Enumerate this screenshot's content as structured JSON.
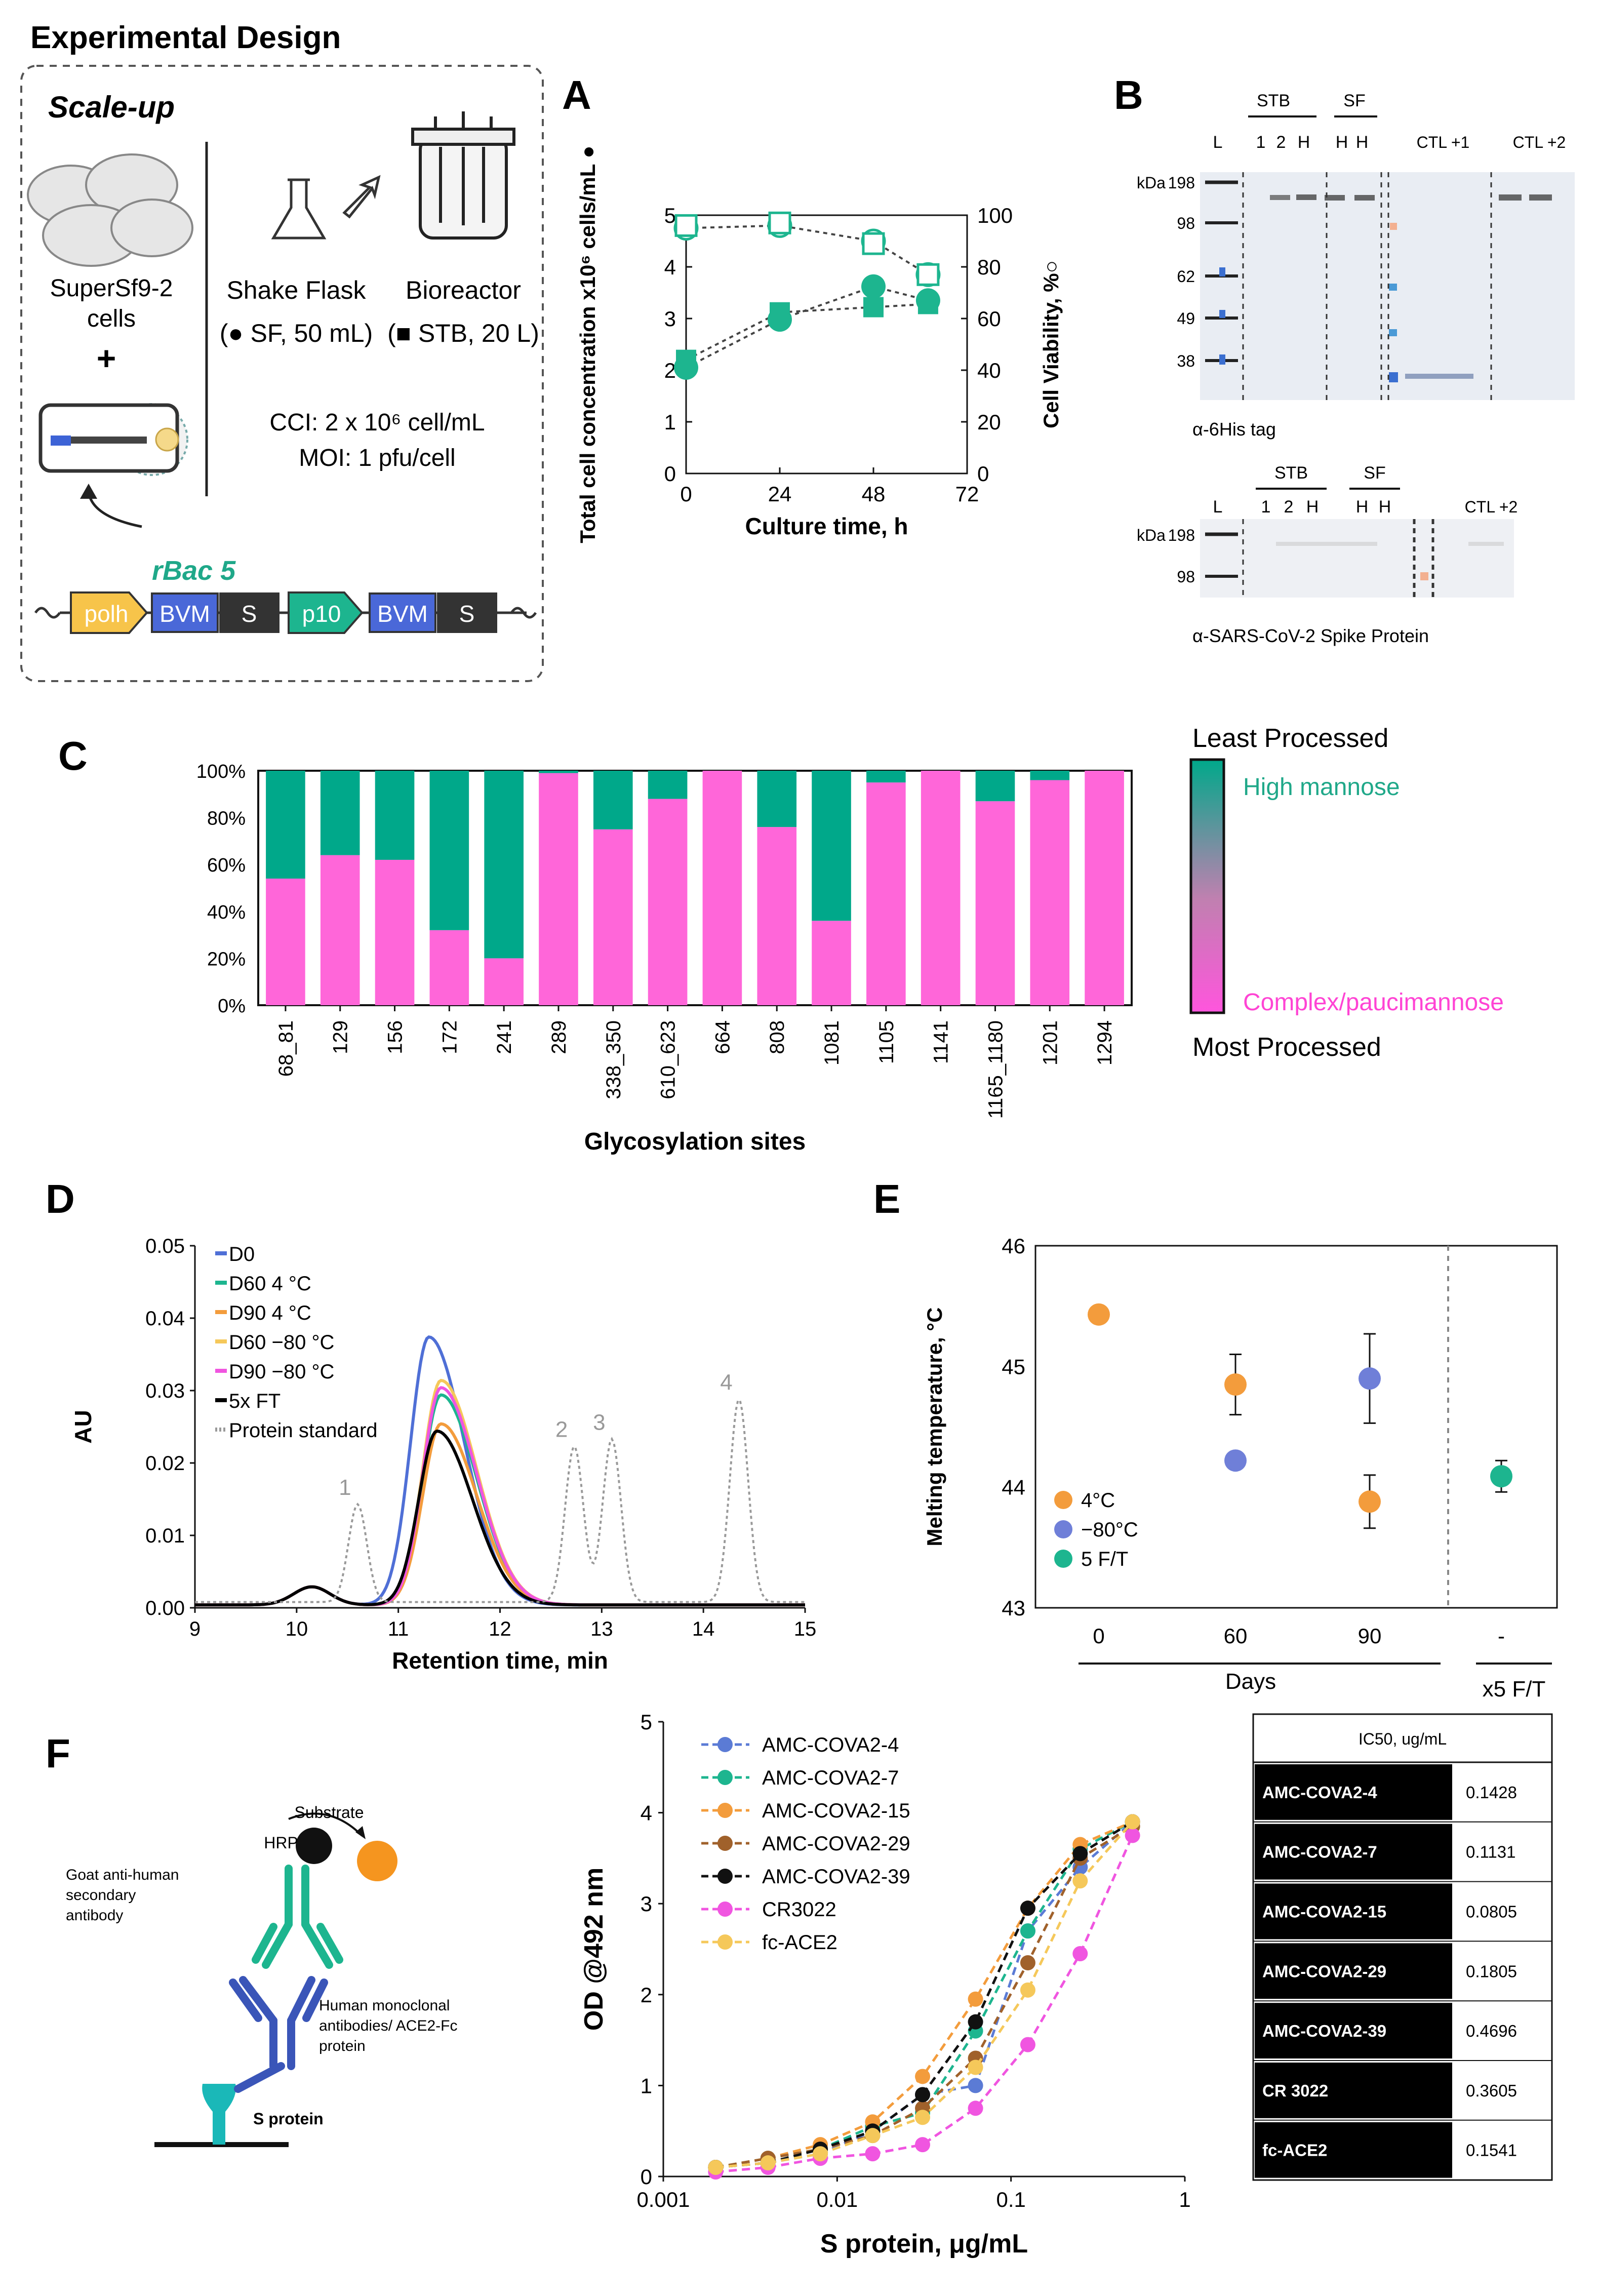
{
  "panel_labels": {
    "A": "A",
    "B": "B",
    "C": "C",
    "D": "D",
    "E": "E",
    "F": "F"
  },
  "design": {
    "title": "Experimental Design",
    "scaleup": "Scale-up",
    "cells_line1": "SuperSf9-2",
    "cells_line2": "cells",
    "plus": "+",
    "flask_name": "Shake Flask",
    "flask_desc": "(● SF, 50 mL)",
    "bioreactor_name": "Bioreactor",
    "bioreactor_desc": "(■ STB, 20 L)",
    "cci": "CCI: 2 x 10⁶ cell/mL",
    "moi": "MOI: 1 pfu/cell",
    "rbac": "rBac 5",
    "construct": {
      "polh": "polh",
      "bvm": "BVM",
      "s": "S",
      "p10": "p10"
    }
  },
  "panelB": {
    "gel1": {
      "group_stb": "STB",
      "group_sf": "SF",
      "lanes": [
        "L",
        "1",
        "2",
        "H",
        "H",
        "H"
      ],
      "ctl1": "CTL +1",
      "ctl2": "CTL +2",
      "kda": "kDa",
      "markers": [
        "198",
        "98",
        "62",
        "49",
        "38"
      ],
      "caption": "α-6His tag"
    },
    "gel2": {
      "group_stb": "STB",
      "group_sf": "SF",
      "lanes": [
        "L",
        "1",
        "2",
        "H",
        "H",
        "H"
      ],
      "ctl2": "CTL +2",
      "kda": "kDa",
      "markers": [
        "198",
        "98"
      ],
      "caption": "α-SARS-CoV-2 Spike Protein"
    }
  },
  "panelC_labels": {
    "least": "Least Processed",
    "most": "Most Processed",
    "high_mannose": "High mannose",
    "complex": "Complex/paucimannose"
  },
  "panelE_labels": {
    "group1": "Days",
    "group2": "x5 F/T"
  },
  "panelF": {
    "substrate": "Substrate",
    "hrp": "HRP",
    "secondary": [
      "Goat anti-human",
      "secondary",
      "antibody"
    ],
    "primary": [
      "Human monoclonal",
      "antibodies/ ACE2-Fc",
      "protein"
    ],
    "sprotein": "S protein",
    "table_header": "IC50, ug/mL",
    "table": [
      {
        "name": "AMC-COVA2-4",
        "ic50": "0.1428"
      },
      {
        "name": "AMC-COVA2-7",
        "ic50": "0.1131"
      },
      {
        "name": "AMC-COVA2-15",
        "ic50": "0.0805"
      },
      {
        "name": "AMC-COVA2-29",
        "ic50": "0.1805"
      },
      {
        "name": "AMC-COVA2-39",
        "ic50": "0.4696"
      },
      {
        "name": "CR 3022",
        "ic50": "0.3605"
      },
      {
        "name": "fc-ACE2",
        "ic50": "0.1541"
      }
    ]
  },
  "chart_data": [
    {
      "id": "A",
      "type": "scatter",
      "xlabel": "Culture time, h",
      "ylabel": "Total cell concentration x10⁶ cells/mL ●",
      "y2label": "Cell Viability, %○",
      "xticks": [
        "0",
        "24",
        "48",
        "72"
      ],
      "yticks": [
        "0",
        "1",
        "2",
        "3",
        "4",
        "5"
      ],
      "y2ticks": [
        "0",
        "20",
        "40",
        "60",
        "80",
        "100"
      ],
      "xlim": [
        0,
        72
      ],
      "ylim": [
        0,
        5
      ],
      "y2lim": [
        0,
        100
      ],
      "series": [
        {
          "name": "SF cell concentration",
          "x": [
            0,
            24,
            48,
            62
          ],
          "y": [
            2.05,
            2.98,
            3.62,
            3.35
          ]
        },
        {
          "name": "STB cell concentration",
          "x": [
            0,
            24,
            48,
            62
          ],
          "y": [
            2.2,
            3.12,
            3.22,
            3.28
          ]
        },
        {
          "name": "SF viability",
          "x": [
            0,
            24,
            48,
            62
          ],
          "y": [
            95,
            96,
            90,
            77
          ]
        },
        {
          "name": "STB viability",
          "x": [
            0,
            24,
            48,
            62
          ],
          "y": [
            96,
            97,
            89,
            77
          ]
        }
      ]
    },
    {
      "id": "C",
      "type": "bar",
      "xlabel": "Glycosylation sites",
      "colorbar_label_top": "Least Processed",
      "colorbar_label_bottom": "Most Processed",
      "yticks": [
        "0%",
        "20%",
        "40%",
        "60%",
        "80%",
        "100%"
      ],
      "ylim": [
        0,
        100
      ],
      "categories": [
        "68_81",
        "129",
        "156",
        "172",
        "241",
        "289",
        "338_350",
        "610_623",
        "664",
        "808",
        "1081",
        "1105",
        "1141",
        "1165_1180",
        "1201",
        "1294"
      ],
      "series": [
        {
          "name": "Complex/paucimannose",
          "color": "#ff66d9",
          "values": [
            54,
            64,
            62,
            32,
            20,
            99,
            75,
            88,
            100,
            76,
            36,
            95,
            100,
            87,
            96,
            100
          ]
        },
        {
          "name": "High mannose",
          "color": "#00a88a",
          "values": [
            46,
            36,
            38,
            68,
            80,
            1,
            25,
            12,
            0,
            24,
            64,
            5,
            0,
            13,
            4,
            0
          ]
        }
      ]
    },
    {
      "id": "D",
      "type": "line",
      "xlabel": "Retention time, min",
      "ylabel": "AU",
      "xticks": [
        "9",
        "10",
        "11",
        "12",
        "13",
        "14",
        "15"
      ],
      "yticks": [
        "0.00",
        "0.01",
        "0.02",
        "0.03",
        "0.04",
        "0.05"
      ],
      "xlim": [
        9,
        15
      ],
      "ylim": [
        0,
        0.05
      ],
      "peak_labels": [
        "1",
        "2",
        "3",
        "4"
      ],
      "series": [
        {
          "name": "D0",
          "color": "#4f6fd6",
          "peak_rt": 11.3,
          "peak_au": 0.037
        },
        {
          "name": "D60 4 °C",
          "color": "#1db58f",
          "peak_rt": 11.42,
          "peak_au": 0.029
        },
        {
          "name": "D90 4 °C",
          "color": "#f39c3c",
          "peak_rt": 11.42,
          "peak_au": 0.025
        },
        {
          "name": "D60 −80 °C",
          "color": "#f5c85a",
          "peak_rt": 11.42,
          "peak_au": 0.031
        },
        {
          "name": "D90 −80 °C",
          "color": "#f055e0",
          "peak_rt": 11.42,
          "peak_au": 0.03
        },
        {
          "name": "5x FT",
          "color": "#000000",
          "peak_rt": 11.38,
          "peak_au": 0.024
        },
        {
          "name": "Protein standard",
          "color": "#999999",
          "peaks_rt": [
            10.6,
            12.73,
            13.1,
            14.35
          ],
          "peaks_au": [
            0.0135,
            0.0215,
            0.0225,
            0.028
          ]
        }
      ]
    },
    {
      "id": "E",
      "type": "scatter",
      "ylabel": "Melting temperature, °C",
      "xticks": [
        "0",
        "60",
        "90",
        "-"
      ],
      "yticks": [
        "43",
        "44",
        "45",
        "46"
      ],
      "ylim": [
        43,
        46
      ],
      "series": [
        {
          "name": "4°C",
          "color": "#f39c3c",
          "x": [
            "0",
            "60",
            "90"
          ],
          "y": [
            45.43,
            44.85,
            43.88
          ],
          "err": [
            0,
            0.25,
            0.22
          ]
        },
        {
          "name": "−80°C",
          "color": "#6f7fd8",
          "x": [
            "60",
            "90"
          ],
          "y": [
            44.22,
            44.9
          ],
          "err": [
            0,
            0.37
          ]
        },
        {
          "name": "5 F/T",
          "color": "#1db58f",
          "x": [
            "-"
          ],
          "y": [
            44.09
          ],
          "err": [
            0.13
          ]
        }
      ]
    },
    {
      "id": "F",
      "type": "line",
      "xlabel": "S protein, μg/mL",
      "ylabel": "OD @492 nm",
      "xticks": [
        "0.001",
        "0.01",
        "0.1",
        "1"
      ],
      "yticks": [
        "0",
        "1",
        "2",
        "3",
        "4",
        "5"
      ],
      "xscale": "log",
      "xlim": [
        0.001,
        1
      ],
      "ylim": [
        0,
        5
      ],
      "x": [
        0.002,
        0.004,
        0.008,
        0.016,
        0.031,
        0.0625,
        0.125,
        0.25,
        0.5
      ],
      "series": [
        {
          "name": "AMC-COVA2-4",
          "color": "#5b7bd5",
          "values": [
            0.1,
            0.15,
            0.25,
            0.5,
            0.9,
            1.0,
            2.7,
            3.4,
            3.9
          ]
        },
        {
          "name": "AMC-COVA2-7",
          "color": "#1db58f",
          "values": [
            0.1,
            0.2,
            0.3,
            0.55,
            0.7,
            1.6,
            2.7,
            3.6,
            3.9
          ]
        },
        {
          "name": "AMC-COVA2-15",
          "color": "#f39c3c",
          "values": [
            0.1,
            0.2,
            0.35,
            0.6,
            1.1,
            1.95,
            2.95,
            3.65,
            3.9
          ]
        },
        {
          "name": "AMC-COVA2-29",
          "color": "#a0612b",
          "values": [
            0.1,
            0.2,
            0.3,
            0.45,
            0.75,
            1.3,
            2.35,
            3.5,
            3.85
          ]
        },
        {
          "name": "AMC-COVA2-39",
          "color": "#111111",
          "values": [
            0.1,
            0.15,
            0.3,
            0.5,
            0.9,
            1.7,
            2.95,
            3.55,
            3.9
          ]
        },
        {
          "name": "CR3022",
          "color": "#f055e0",
          "values": [
            0.05,
            0.1,
            0.2,
            0.25,
            0.35,
            0.75,
            1.45,
            2.45,
            3.75
          ]
        },
        {
          "name": "fc-ACE2",
          "color": "#f5c85a",
          "values": [
            0.1,
            0.15,
            0.25,
            0.45,
            0.65,
            1.2,
            2.05,
            3.25,
            3.9
          ]
        }
      ]
    }
  ]
}
